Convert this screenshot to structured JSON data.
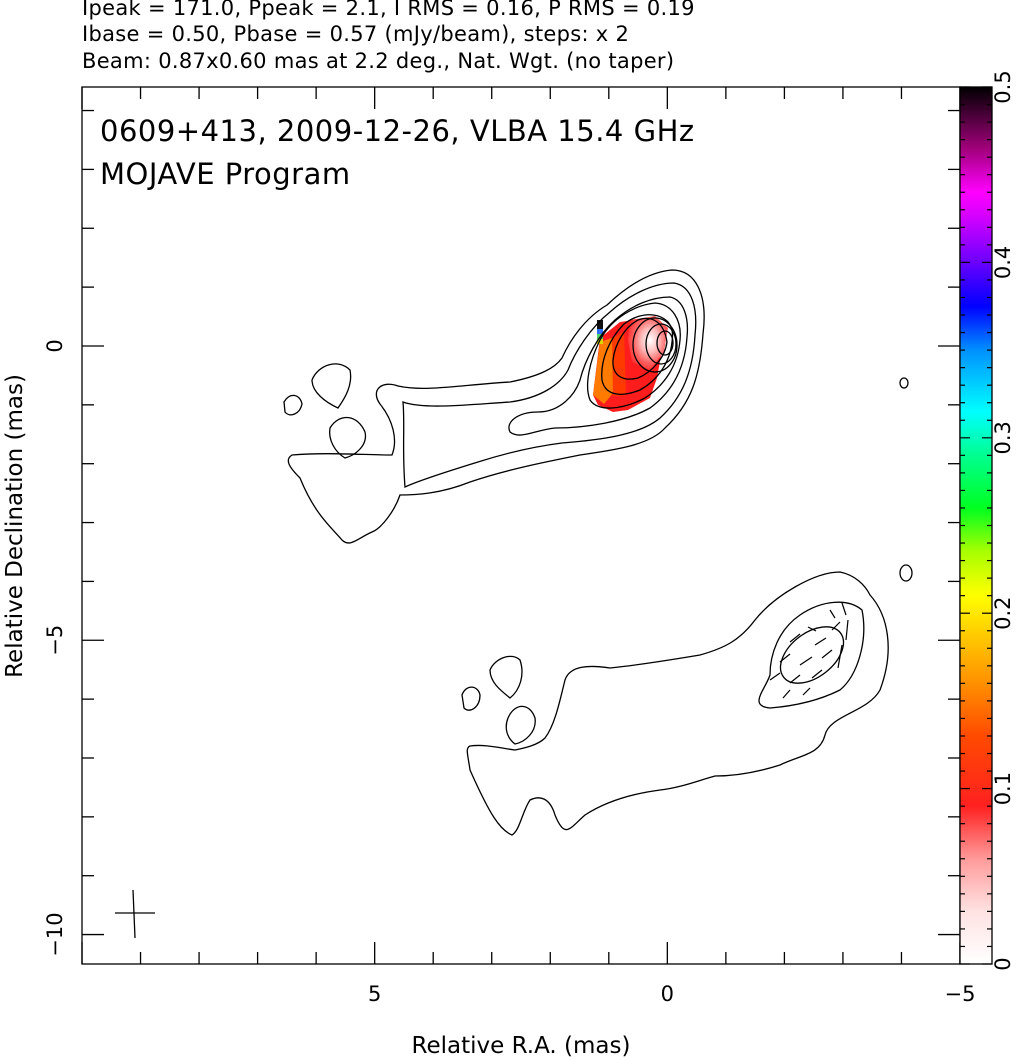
{
  "header": {
    "line1": "Ipeak = 171.0, Ppeak = 2.1, I RMS = 0.16, P RMS = 0.19",
    "line2": "Ibase = 0.50, Pbase = 0.57 (mJy/beam), steps: x 2",
    "line3": "Beam: 0.87x0.60 mas at 2.2 deg., Nat. Wgt. (no taper)"
  },
  "chart_data": {
    "type": "heatmap",
    "title": "0609+413, 2009-12-26, VLBA 15.4 GHz",
    "subtitle": "MOJAVE Program",
    "xlabel": "Relative R.A. (mas)",
    "ylabel": "Relative Declination (mas)",
    "xlim": [
      10.0,
      -5.0
    ],
    "ylim": [
      -10.5,
      4.4
    ],
    "x_ticks": [
      5,
      0,
      -5
    ],
    "x_tick_labels": [
      "5",
      "0",
      "−5"
    ],
    "y_ticks": [
      0,
      -5,
      -10
    ],
    "y_tick_labels": [
      "0",
      "−5",
      "−10"
    ],
    "colorbar": {
      "range": [
        0,
        0.5
      ],
      "ticks": [
        0,
        0.1,
        0.2,
        0.3,
        0.4,
        0.5
      ],
      "tick_labels": [
        "0",
        "0.1",
        "0.2",
        "0.3",
        "0.4",
        "0.5"
      ]
    },
    "core": {
      "x": 0.0,
      "y": 0.0
    },
    "secondary_component": {
      "x": -2.6,
      "y": -5.2
    },
    "beam_marker": {
      "x": 9.0,
      "y": -9.6
    }
  }
}
